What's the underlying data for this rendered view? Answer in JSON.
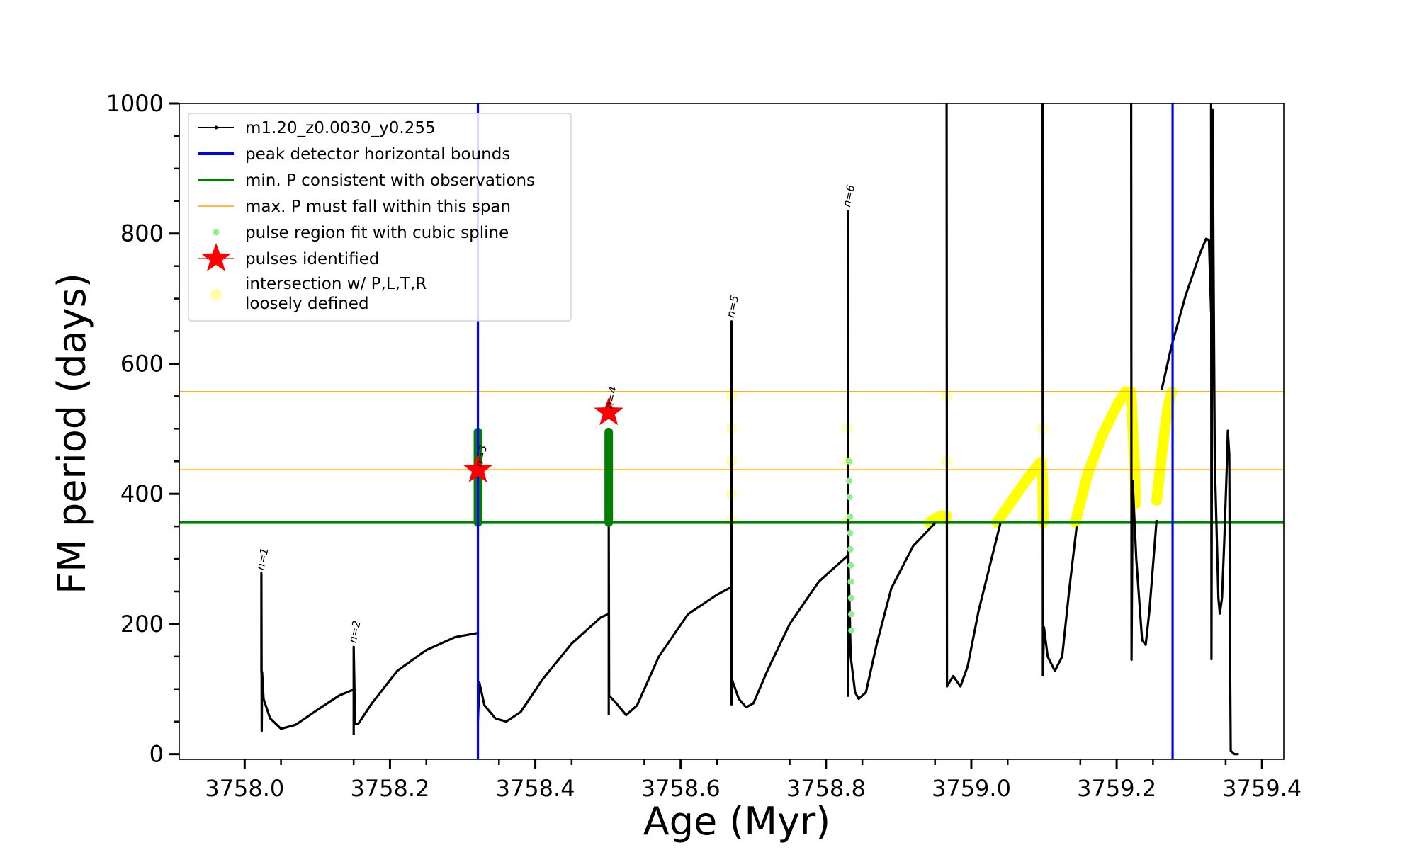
{
  "chart_data": {
    "type": "line",
    "title": "",
    "xlabel": "Age (Myr)",
    "ylabel": "FM period (days)",
    "xlim": [
      3757.91,
      3759.43
    ],
    "ylim": [
      -8,
      1000
    ],
    "xticks": [
      {
        "value": 3758.0,
        "label": "3758.0"
      },
      {
        "value": 3758.2,
        "label": "3758.2"
      },
      {
        "value": 3758.4,
        "label": "3758.4"
      },
      {
        "value": 3758.6,
        "label": "3758.6"
      },
      {
        "value": 3758.8,
        "label": "3758.8"
      },
      {
        "value": 3759.0,
        "label": "3759.0"
      },
      {
        "value": 3759.2,
        "label": "3759.2"
      },
      {
        "value": 3759.4,
        "label": "3759.4"
      }
    ],
    "yticks": [
      {
        "value": 0,
        "label": "0"
      },
      {
        "value": 200,
        "label": "200"
      },
      {
        "value": 400,
        "label": "400"
      },
      {
        "value": 600,
        "label": "600"
      },
      {
        "value": 800,
        "label": "800"
      },
      {
        "value": 1000,
        "label": "1000"
      }
    ],
    "grid": false,
    "legend_position": "top-left",
    "colors": {
      "curve": "#000000",
      "bounds": "#0000ff",
      "min_p": "#008000",
      "max_p_span": "#ffa500",
      "spline": "#90ee90",
      "spline_dense": "#008000",
      "star": "#ff0000",
      "intersection": "#ffff00",
      "intersection_loose": "#ffffaa"
    },
    "series": [
      {
        "name": "m1.20_z0.0030_y0.255",
        "type": "line",
        "segments": [
          [
            [
              3758.023,
              125
            ],
            [
              3758.023,
              278
            ],
            [
              3758.0235,
              36
            ],
            [
              3758.024,
              126
            ],
            [
              3758.026,
              85
            ],
            [
              3758.035,
              55
            ],
            [
              3758.05,
              39
            ],
            [
              3758.07,
              45
            ],
            [
              3758.1,
              68
            ],
            [
              3758.13,
              90
            ],
            [
              3758.145,
              97
            ],
            [
              3758.15,
              99
            ]
          ],
          [
            [
              3758.15,
              29
            ],
            [
              3758.15,
              165
            ],
            [
              3758.152,
              47
            ],
            [
              3758.156,
              46
            ],
            [
              3758.175,
              78
            ],
            [
              3758.21,
              128
            ],
            [
              3758.25,
              160
            ],
            [
              3758.29,
              180
            ],
            [
              3758.32,
              186
            ]
          ],
          [
            [
              3758.321,
              51
            ],
            [
              3758.323,
              110
            ],
            [
              3758.33,
              75
            ],
            [
              3758.345,
              55
            ],
            [
              3758.36,
              50
            ],
            [
              3758.38,
              65
            ],
            [
              3758.41,
              115
            ],
            [
              3758.45,
              170
            ],
            [
              3758.49,
              210
            ],
            [
              3758.5,
              215
            ]
          ],
          [
            [
              3758.501,
              60
            ],
            [
              3758.501,
              350
            ],
            [
              3758.5015,
              90
            ],
            [
              3758.51,
              80
            ],
            [
              3758.525,
              60
            ],
            [
              3758.54,
              75
            ],
            [
              3758.57,
              150
            ],
            [
              3758.61,
              215
            ],
            [
              3758.65,
              245
            ],
            [
              3758.67,
              257
            ]
          ],
          [
            [
              3758.67,
              75
            ],
            [
              3758.67,
              665
            ],
            [
              3758.6705,
              115
            ],
            [
              3758.68,
              85
            ],
            [
              3758.69,
              72
            ],
            [
              3758.7,
              78
            ],
            [
              3758.72,
              130
            ],
            [
              3758.75,
              200
            ],
            [
              3758.79,
              265
            ],
            [
              3758.82,
              295
            ],
            [
              3758.83,
              305
            ]
          ],
          [
            [
              3758.83,
              88
            ],
            [
              3758.83,
              835
            ],
            [
              3758.831,
              300
            ],
            [
              3758.834,
              150
            ],
            [
              3758.84,
              95
            ],
            [
              3758.845,
              85
            ],
            [
              3758.855,
              95
            ],
            [
              3758.87,
              170
            ],
            [
              3758.89,
              255
            ],
            [
              3758.92,
              320
            ],
            [
              3758.95,
              355
            ]
          ],
          [
            [
              3758.966,
              1000
            ],
            [
              3758.9665,
              104
            ],
            [
              3758.975,
              120
            ],
            [
              3758.985,
              104
            ],
            [
              3758.995,
              135
            ],
            [
              3759.01,
              220
            ],
            [
              3759.03,
              310
            ],
            [
              3759.04,
              355
            ]
          ],
          [
            [
              3759.098,
              1000
            ],
            [
              3759.0985,
              121
            ],
            [
              3759.1,
              195
            ],
            [
              3759.105,
              150
            ],
            [
              3759.115,
              128
            ],
            [
              3759.125,
              150
            ],
            [
              3759.135,
              255
            ],
            [
              3759.145,
              350
            ]
          ],
          [
            [
              3759.22,
              1000
            ],
            [
              3759.2205,
              145
            ],
            [
              3759.222,
              420
            ],
            [
              3759.227,
              300
            ],
            [
              3759.235,
              175
            ],
            [
              3759.24,
              168
            ],
            [
              3759.245,
              220
            ],
            [
              3759.255,
              360
            ]
          ],
          [
            [
              3759.262,
              560
            ],
            [
              3759.275,
              625
            ],
            [
              3759.295,
              705
            ],
            [
              3759.315,
              770
            ],
            [
              3759.323,
              792
            ],
            [
              3759.327,
              790
            ],
            [
              3759.33,
              680
            ]
          ],
          [
            [
              3759.33,
              1000
            ],
            [
              3759.3305,
              146
            ],
            [
              3759.332,
              990
            ],
            [
              3759.335,
              450
            ],
            [
              3759.34,
              240
            ],
            [
              3759.342,
              216
            ],
            [
              3759.345,
              240
            ],
            [
              3759.348,
              325
            ],
            [
              3759.352,
              455
            ],
            [
              3759.353,
              497
            ],
            [
              3759.355,
              460
            ],
            [
              3759.356,
              160
            ],
            [
              3759.357,
              5
            ],
            [
              3759.362,
              0
            ],
            [
              3759.368,
              0
            ]
          ]
        ]
      },
      {
        "name": "peak detector horizontal bounds",
        "type": "vline",
        "x": [
          3758.321,
          3759.277
        ]
      },
      {
        "name": "min. P consistent with observations",
        "type": "hline",
        "y": 356
      },
      {
        "name": "max. P must fall within this span",
        "type": "hline",
        "y": [
          437,
          557
        ]
      },
      {
        "name": "pulse region fit with cubic spline",
        "type": "scatter",
        "points": [
          [
            3758.8315,
            450
          ],
          [
            3758.832,
            420
          ],
          [
            3758.8325,
            395
          ],
          [
            3758.833,
            365
          ],
          [
            3758.8333,
            340
          ],
          [
            3758.8336,
            315
          ],
          [
            3758.8339,
            290
          ],
          [
            3758.8342,
            265
          ],
          [
            3758.8345,
            240
          ],
          [
            3758.8348,
            215
          ],
          [
            3758.835,
            190
          ]
        ]
      },
      {
        "name": "pulses identified",
        "type": "scatter",
        "points": [
          [
            3758.321,
            437
          ],
          [
            3758.501,
            525
          ]
        ]
      },
      {
        "name": "intersection w/ P,L,T,R\nloosely defined",
        "type": "scatter",
        "points": [
          [
            3758.67,
            360
          ],
          [
            3758.67,
            400
          ],
          [
            3758.67,
            450
          ],
          [
            3758.67,
            500
          ],
          [
            3758.67,
            550
          ],
          [
            3758.83,
            360
          ],
          [
            3758.83,
            450
          ],
          [
            3758.83,
            500
          ],
          [
            3758.966,
            360
          ],
          [
            3758.966,
            450
          ],
          [
            3758.966,
            550
          ],
          [
            3759.098,
            360
          ],
          [
            3759.098,
            400
          ],
          [
            3759.098,
            450
          ],
          [
            3759.098,
            500
          ]
        ]
      }
    ],
    "yellow_bands": [
      [
        [
          3758.942,
          356
        ],
        [
          3758.95,
          362
        ],
        [
          3758.958,
          366
        ],
        [
          3758.966,
          366
        ]
      ],
      [
        [
          3759.035,
          356
        ],
        [
          3759.055,
          388
        ],
        [
          3759.075,
          420
        ],
        [
          3759.095,
          448
        ],
        [
          3759.098,
          430
        ],
        [
          3759.099,
          356
        ]
      ],
      [
        [
          3759.143,
          356
        ],
        [
          3759.16,
          430
        ],
        [
          3759.18,
          490
        ],
        [
          3759.2,
          535
        ],
        [
          3759.212,
          557
        ]
      ],
      [
        [
          3759.22,
          557
        ],
        [
          3759.222,
          500
        ],
        [
          3759.225,
          440
        ],
        [
          3759.226,
          385
        ]
      ],
      [
        [
          3759.255,
          390
        ],
        [
          3759.263,
          470
        ],
        [
          3759.27,
          530
        ],
        [
          3759.276,
          557
        ]
      ]
    ],
    "dense_green_bands": [
      {
        "x": 3758.321,
        "y": [
          356,
          495
        ]
      },
      {
        "x": 3758.501,
        "y": [
          356,
          495
        ]
      }
    ],
    "annotations": [
      {
        "text": "n=1",
        "x": 3758.026,
        "y": 282
      },
      {
        "text": "n=2",
        "x": 3758.153,
        "y": 170
      },
      {
        "text": "n=3",
        "x": 3758.327,
        "y": 440
      },
      {
        "text": "n=4",
        "x": 3758.506,
        "y": 530
      },
      {
        "text": "n=5",
        "x": 3758.673,
        "y": 670
      },
      {
        "text": "n=6",
        "x": 3758.833,
        "y": 840
      }
    ],
    "legend": [
      {
        "label": "m1.20_z0.0030_y0.255",
        "kind": "line-marker",
        "color": "#000000"
      },
      {
        "label": "peak detector horizontal bounds",
        "kind": "line",
        "color": "#0000ff"
      },
      {
        "label": "min. P consistent with observations",
        "kind": "line",
        "color": "#008000"
      },
      {
        "label": "max. P must fall within this span",
        "kind": "thin-line",
        "color": "#ffa500"
      },
      {
        "label": "pulse region fit with cubic spline",
        "kind": "dot",
        "color": "#90ee90"
      },
      {
        "label": "pulses identified",
        "kind": "star",
        "color": "#ff0000"
      },
      {
        "label": "intersection w/ P,L,T,R",
        "label2": "loosely defined",
        "kind": "dot",
        "color": "#ffffaa"
      }
    ]
  }
}
